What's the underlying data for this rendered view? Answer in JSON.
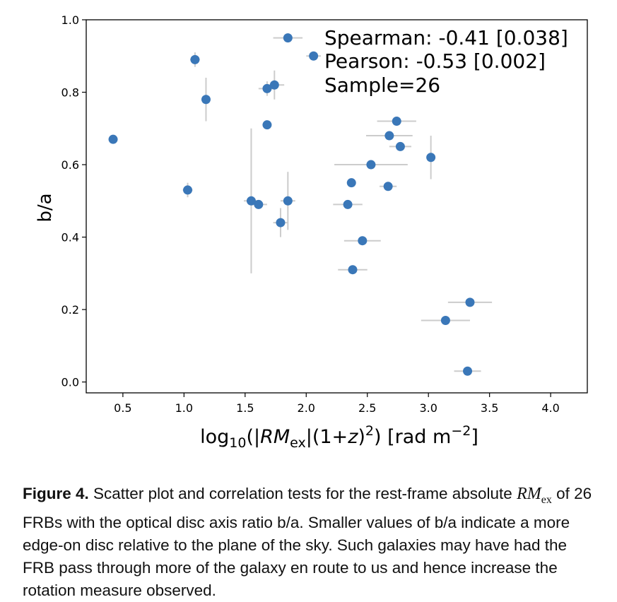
{
  "chart_data": {
    "type": "scatter",
    "title": "",
    "xlabel": "log10(|RMex|(1+z)2) [rad m−2]",
    "ylabel": "b/a",
    "xlim": [
      0.2,
      4.3
    ],
    "ylim": [
      -0.03,
      1.0
    ],
    "xticks": [
      "0.5",
      "1.0",
      "1.5",
      "2.0",
      "2.5",
      "3.0",
      "3.5",
      "4.0"
    ],
    "yticks": [
      "0.0",
      "0.2",
      "0.4",
      "0.6",
      "0.8",
      "1.0"
    ],
    "grid": false,
    "marker_color": "#3a77b8",
    "errorbar_color": "#cccccc",
    "annotations": [
      "Spearman: -0.41 [0.038]",
      "Pearson: -0.53 [0.002]",
      "Sample=26"
    ],
    "points": [
      {
        "x": 0.42,
        "y": 0.67,
        "xerr": 0.0,
        "yerr": 0.0
      },
      {
        "x": 1.03,
        "y": 0.53,
        "xerr": 0.04,
        "yerr": 0.02
      },
      {
        "x": 1.09,
        "y": 0.89,
        "xerr": 0.04,
        "yerr": 0.02
      },
      {
        "x": 1.18,
        "y": 0.78,
        "xerr": 0.0,
        "yerr": 0.06
      },
      {
        "x": 1.55,
        "y": 0.5,
        "xerr": 0.06,
        "yerr": 0.2
      },
      {
        "x": 1.61,
        "y": 0.49,
        "xerr": 0.07,
        "yerr": 0.0
      },
      {
        "x": 1.68,
        "y": 0.81,
        "xerr": 0.07,
        "yerr": 0.02
      },
      {
        "x": 1.68,
        "y": 0.71,
        "xerr": 0.0,
        "yerr": 0.0
      },
      {
        "x": 1.74,
        "y": 0.82,
        "xerr": 0.08,
        "yerr": 0.04
      },
      {
        "x": 1.79,
        "y": 0.44,
        "xerr": 0.06,
        "yerr": 0.04
      },
      {
        "x": 1.85,
        "y": 0.95,
        "xerr": 0.12,
        "yerr": 0.0
      },
      {
        "x": 1.85,
        "y": 0.5,
        "xerr": 0.06,
        "yerr": 0.08
      },
      {
        "x": 2.06,
        "y": 0.9,
        "xerr": 0.06,
        "yerr": 0.0
      },
      {
        "x": 2.34,
        "y": 0.49,
        "xerr": 0.12,
        "yerr": 0.0
      },
      {
        "x": 2.37,
        "y": 0.55,
        "xerr": 0.0,
        "yerr": 0.0
      },
      {
        "x": 2.38,
        "y": 0.31,
        "xerr": 0.12,
        "yerr": 0.0
      },
      {
        "x": 2.46,
        "y": 0.39,
        "xerr": 0.15,
        "yerr": 0.0
      },
      {
        "x": 2.53,
        "y": 0.6,
        "xerr": 0.3,
        "yerr": 0.0
      },
      {
        "x": 2.67,
        "y": 0.54,
        "xerr": 0.07,
        "yerr": 0.0
      },
      {
        "x": 2.68,
        "y": 0.68,
        "xerr": 0.19,
        "yerr": 0.0
      },
      {
        "x": 2.74,
        "y": 0.72,
        "xerr": 0.16,
        "yerr": 0.0
      },
      {
        "x": 2.77,
        "y": 0.65,
        "xerr": 0.09,
        "yerr": 0.0
      },
      {
        "x": 3.02,
        "y": 0.62,
        "xerr": 0.0,
        "yerr": 0.06
      },
      {
        "x": 3.14,
        "y": 0.17,
        "xerr": 0.2,
        "yerr": 0.0
      },
      {
        "x": 3.32,
        "y": 0.03,
        "xerr": 0.11,
        "yerr": 0.0
      },
      {
        "x": 3.34,
        "y": 0.22,
        "xerr": 0.18,
        "yerr": 0.0
      }
    ]
  },
  "caption": {
    "label": "Figure 4.",
    "text_before_rm": " Scatter plot and correlation tests for the rest-frame absolute ",
    "rm_main": "RM",
    "rm_sub": "ex",
    "text_after_rm": " of 26 FRBs with the optical disc axis ratio b/a. Smaller values of b/a indicate a more edge-on disc relative to the plane of the sky.  Such galaxies may have had the FRB pass through more of the galaxy en route to us and hence increase the rotation measure observed."
  }
}
